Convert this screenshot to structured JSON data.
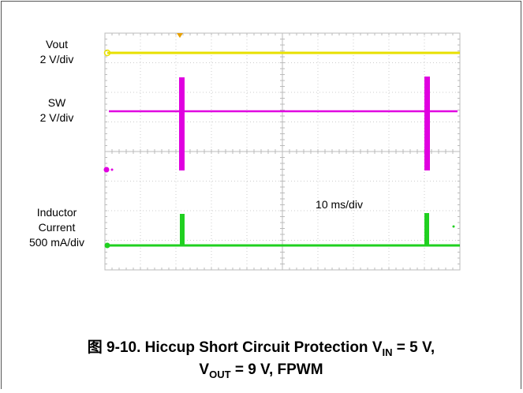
{
  "labels": {
    "vout": [
      "Vout",
      "2 V/div"
    ],
    "sw": [
      "SW",
      "2 V/div"
    ],
    "current": [
      "Inductor",
      "Current",
      "500 mA/div"
    ],
    "timebase": "10 ms/div"
  },
  "caption": {
    "line1": {
      "text": "图 9-10. Hiccup Short Circuit Protection V",
      "sub": "IN",
      "tail": " = 5 V,"
    },
    "line2": {
      "text": "V",
      "sub": "OUT",
      "tail": " = 9 V, FPWM"
    }
  }
}
